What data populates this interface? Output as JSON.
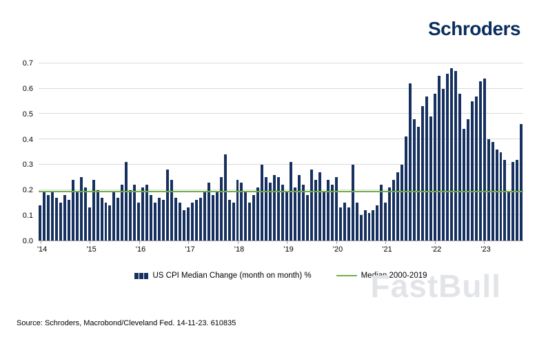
{
  "logo": "Schroders",
  "watermark": "FastBull",
  "source": "Source: Schroders, Macrobond/Cleveland Fed. 14-11-23. 610835",
  "legend": [
    {
      "label": "US CPI Median Change (month on month) %",
      "color": "#16315f",
      "type": "bar"
    },
    {
      "label": "Median 2000-2019",
      "color": "#70ad47",
      "type": "line"
    }
  ],
  "chart_data": {
    "type": "bar",
    "title": "",
    "xlabel": "",
    "ylabel": "",
    "ylim": [
      0,
      0.7
    ],
    "y_ticks": [
      0.0,
      0.1,
      0.2,
      0.3,
      0.4,
      0.5,
      0.6,
      0.7
    ],
    "x_tick_labels": [
      "'14",
      "'15",
      "'16",
      "'17",
      "'18",
      "'19",
      "'20",
      "'21",
      "'22",
      "'23"
    ],
    "months_per_tick": 12,
    "grid": true,
    "legend_position": "bottom",
    "bar_color": "#16315f",
    "line_color": "#70ad47",
    "median_line_value": 0.19,
    "median_line_name": "Median 2000-2019",
    "series": [
      {
        "name": "US CPI Median Change (month on month) %",
        "start": "2014-01",
        "end": "2023-10",
        "values": [
          0.14,
          0.19,
          0.18,
          0.19,
          0.17,
          0.15,
          0.18,
          0.16,
          0.24,
          0.19,
          0.25,
          0.21,
          0.13,
          0.24,
          0.2,
          0.17,
          0.15,
          0.14,
          0.19,
          0.17,
          0.22,
          0.31,
          0.2,
          0.22,
          0.15,
          0.21,
          0.22,
          0.18,
          0.15,
          0.17,
          0.16,
          0.28,
          0.24,
          0.17,
          0.15,
          0.12,
          0.13,
          0.15,
          0.16,
          0.17,
          0.19,
          0.23,
          0.18,
          0.19,
          0.25,
          0.34,
          0.16,
          0.15,
          0.24,
          0.23,
          0.19,
          0.15,
          0.18,
          0.21,
          0.3,
          0.25,
          0.23,
          0.26,
          0.25,
          0.22,
          0.19,
          0.31,
          0.21,
          0.26,
          0.22,
          0.18,
          0.28,
          0.24,
          0.27,
          0.19,
          0.24,
          0.22,
          0.25,
          0.13,
          0.15,
          0.13,
          0.3,
          0.15,
          0.1,
          0.12,
          0.11,
          0.12,
          0.14,
          0.22,
          0.15,
          0.21,
          0.24,
          0.27,
          0.3,
          0.41,
          0.62,
          0.48,
          0.45,
          0.53,
          0.57,
          0.49,
          0.58,
          0.65,
          0.6,
          0.66,
          0.68,
          0.67,
          0.58,
          0.44,
          0.48,
          0.55,
          0.57,
          0.63,
          0.64,
          0.4,
          0.39,
          0.36,
          0.35,
          0.32,
          0.19,
          0.31,
          0.32,
          0.46
        ]
      }
    ]
  }
}
